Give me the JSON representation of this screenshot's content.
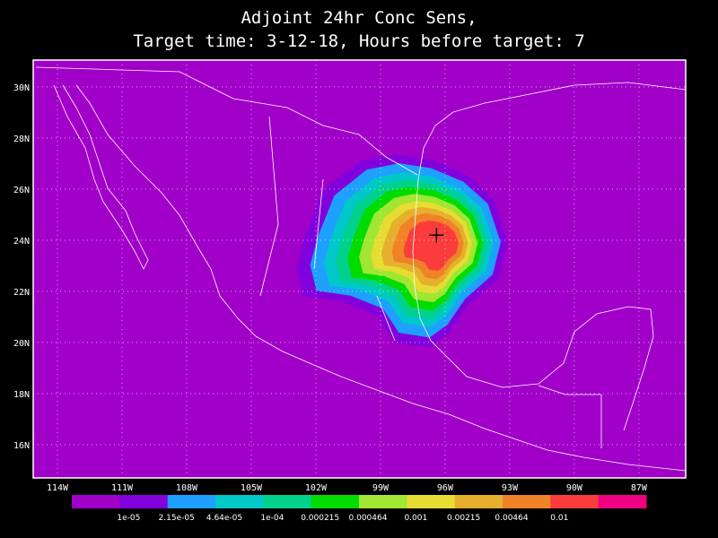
{
  "title": [
    "Adjoint 24hr Conc Sens,",
    "Target time: 3-12-18, Hours before target: 7"
  ],
  "map": {
    "lon_range": [
      -115.125,
      -84.83
    ],
    "lat_range": [
      14.7,
      31.05
    ],
    "lon_ticks": [
      {
        "value": -114,
        "label": "114W"
      },
      {
        "value": -111,
        "label": "111W"
      },
      {
        "value": -108,
        "label": "108W"
      },
      {
        "value": -105,
        "label": "105W"
      },
      {
        "value": -102,
        "label": "102W"
      },
      {
        "value": -99,
        "label": "99W"
      },
      {
        "value": -96,
        "label": "96W"
      },
      {
        "value": -93,
        "label": "93W"
      },
      {
        "value": -90,
        "label": "90W"
      },
      {
        "value": -87,
        "label": "87W"
      }
    ],
    "lat_ticks": [
      {
        "value": 30,
        "label": "30N"
      },
      {
        "value": 28,
        "label": "28N"
      },
      {
        "value": 26,
        "label": "26N"
      },
      {
        "value": 24,
        "label": "24N"
      },
      {
        "value": 22,
        "label": "22N"
      },
      {
        "value": 20,
        "label": "20N"
      },
      {
        "value": 18,
        "label": "18N"
      },
      {
        "value": 16,
        "label": "16N"
      }
    ],
    "grid": true,
    "coast_color": "#ffffff",
    "target": [
      -96.4,
      24.2
    ]
  },
  "colorbar": {
    "colors": [
      "#a000c8",
      "#8200dc",
      "#1ea0ff",
      "#00c8c8",
      "#00d28c",
      "#00dc00",
      "#a0e632",
      "#e6dc32",
      "#e6af2d",
      "#f08228",
      "#fa3c3c",
      "#f00082"
    ],
    "labels": [
      "1e-05",
      "2.15e-05",
      "4.64e-05",
      "1e-04",
      "0.000215",
      "0.000464",
      "0.001",
      "0.00215",
      "0.00464",
      "0.01"
    ]
  }
}
